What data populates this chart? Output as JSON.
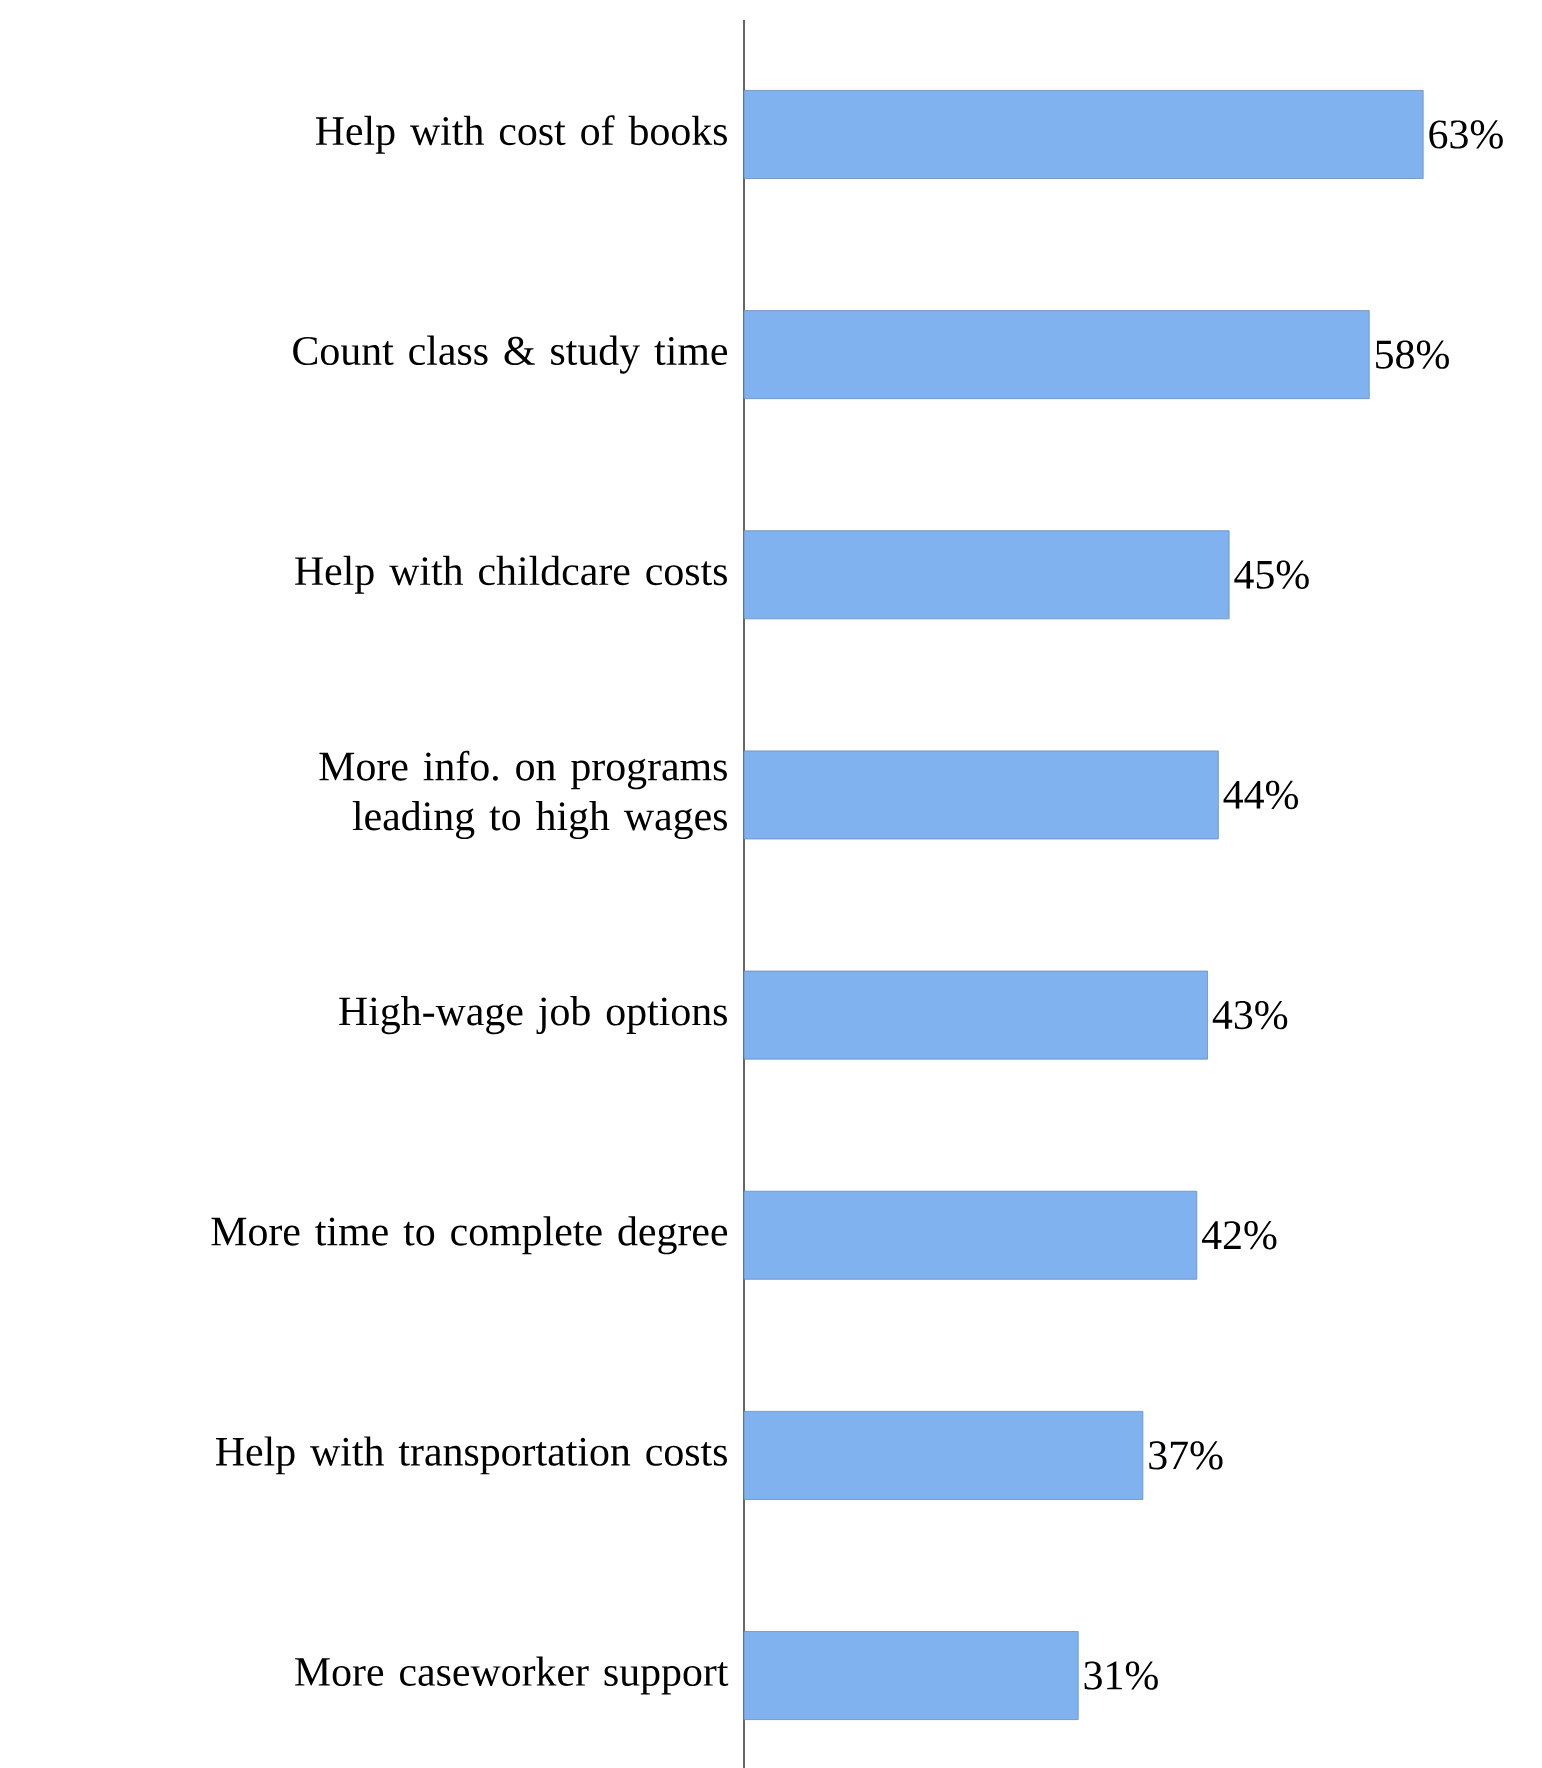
{
  "chart_data": {
    "type": "bar",
    "orientation": "horizontal",
    "categories": [
      "Help with cost of books",
      "Count class & study time",
      "Help with childcare costs",
      "More info. on programs leading to high wages",
      "High-wage job options",
      "More time to complete degree",
      "Help with transportation costs",
      "More caseworker support"
    ],
    "values": [
      63,
      58,
      45,
      44,
      43,
      42,
      37,
      31
    ],
    "value_labels": [
      "63%",
      "58%",
      "45%",
      "44%",
      "43%",
      "42%",
      "37%",
      "31%"
    ],
    "color": "#7fb2ee"
  }
}
